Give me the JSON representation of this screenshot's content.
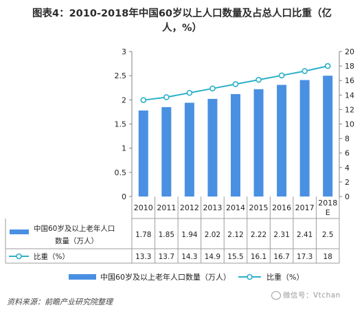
{
  "title_line1": "图表4：2010-2018年中国60岁以上人口数量及占总人口比重（亿",
  "title_line2": "人，%）",
  "source": "资料来源：前瞻产业研究院整理",
  "watermark": "微信号：Vtchan",
  "chart_data": {
    "type": "bar+line",
    "categories": [
      "2010",
      "2011",
      "2012",
      "2013",
      "2014",
      "2015",
      "2016",
      "2017",
      "2018\nE"
    ],
    "series": [
      {
        "name": "中国60岁及以上老年人口数量（万人）",
        "type": "bar",
        "axis": "left",
        "values": [
          1.78,
          1.85,
          1.94,
          2.02,
          2.12,
          2.22,
          2.31,
          2.41,
          2.5
        ],
        "value_labels": [
          "1.78",
          "1.85",
          "1.94",
          "2.02",
          "2.12",
          "2.22",
          "2.31",
          "2.41",
          "2.5"
        ],
        "color": "#4a90e2"
      },
      {
        "name": "比重（%）",
        "type": "line",
        "axis": "right",
        "values": [
          13.3,
          13.7,
          14.3,
          14.9,
          15.5,
          16.1,
          16.7,
          17.3,
          18
        ],
        "value_labels": [
          "13.3",
          "13.7",
          "14.3",
          "14.9",
          "15.5",
          "16.1",
          "16.7",
          "17.3",
          "18"
        ],
        "color": "#2ab0c8"
      }
    ],
    "table_row_labels": [
      "中国60岁及以上老年人口\n数量（万人）",
      "比重（%）"
    ],
    "y_left": {
      "min": 0,
      "max": 3,
      "ticks": [
        "0",
        "0.5",
        "1",
        "1.5",
        "2",
        "2.5",
        "3"
      ]
    },
    "y_right": {
      "min": 0,
      "max": 20,
      "ticks": [
        "0",
        "2",
        "4",
        "6",
        "8",
        "10",
        "12",
        "14",
        "16",
        "18",
        "20"
      ]
    },
    "legend_position": "bottom",
    "grid": false
  }
}
